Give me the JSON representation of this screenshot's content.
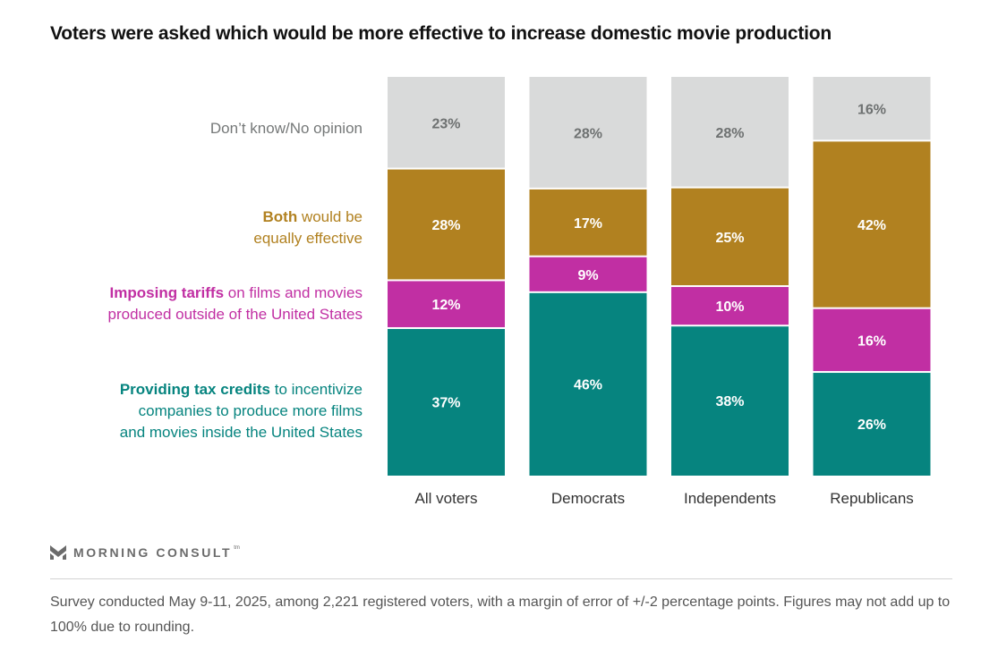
{
  "chart_data": {
    "type": "bar",
    "stacked": true,
    "title": "Voters were asked which would be more effective to increase domestic movie production",
    "xlabel": "",
    "ylabel": "",
    "ylim": [
      0,
      100
    ],
    "unit": "%",
    "grid": false,
    "legend_placement": "left",
    "categories": [
      "All voters",
      "Democrats",
      "Independents",
      "Republicans"
    ],
    "series": [
      {
        "key": "tax_credits",
        "name": "Providing tax credits to incentivize companies to produce more films and movies inside the United States",
        "legend_bold": "Providing tax credits",
        "legend_rest_lines": [
          " to incentivize",
          "companies to produce more films",
          "and movies inside the United States"
        ],
        "color": "#06847F",
        "label_color": "#FFFFFF",
        "values": [
          37,
          46,
          38,
          26
        ]
      },
      {
        "key": "tariffs",
        "name": "Imposing tariffs on films and movies produced outside of the United States",
        "legend_bold": "Imposing tariffs",
        "legend_rest_lines": [
          " on films and movies",
          "produced outside of the United States"
        ],
        "color": "#C12FA3",
        "label_color": "#FFFFFF",
        "values": [
          12,
          9,
          10,
          16
        ]
      },
      {
        "key": "both",
        "name": "Both would be equally effective",
        "legend_bold": "Both",
        "legend_rest_lines": [
          " would be",
          "equally effective"
        ],
        "color": "#B18120",
        "label_color": "#FFFFFF",
        "values": [
          28,
          17,
          25,
          42
        ]
      },
      {
        "key": "dont_know",
        "name": "Don’t know/No opinion",
        "legend_bold": "",
        "legend_rest_lines": [
          "Don’t know/No opinion"
        ],
        "color": "#D9DADA",
        "label_color": "#6E7171",
        "legend_color": "#757878",
        "values": [
          23,
          28,
          28,
          16
        ]
      }
    ]
  },
  "branding": {
    "logo_text": "MORNING CONSULT",
    "logo_mark": "tm",
    "logo_icon": "morning-consult-chevron-icon"
  },
  "footer": {
    "note": "Survey conducted May 9-11, 2025, among 2,221 registered voters, with a margin of error of +/-2 percentage points. Figures may not add up to 100% due to rounding."
  }
}
